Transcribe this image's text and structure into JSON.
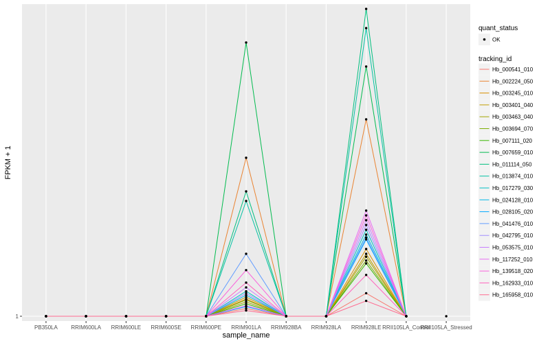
{
  "chart_data": {
    "type": "line",
    "xlabel": "sample_name",
    "ylabel": "FPKM + 1",
    "categories": [
      "PB350LA",
      "RRIM600LA",
      "RRIM600LE",
      "RRIM600SE",
      "RRIM600PE",
      "RRIM901LA",
      "RRIM928BA",
      "RRIM928LA",
      "RRIM928LE",
      "RRII105LA_Control",
      "RRII105LA_Stressed"
    ],
    "yticks": [
      {
        "value": 1,
        "label": "1"
      }
    ],
    "ylim": [
      0.5,
      33.5
    ],
    "grid": true,
    "background": "#ebebeb",
    "grid_color": "#ffffff",
    "legend_position": "right",
    "quant_status": {
      "title": "quant_status",
      "entries": [
        "OK"
      ]
    },
    "legend_title": "tracking_id",
    "series": [
      {
        "name": "Hb_000541_010",
        "color": "#F8766D",
        "values": [
          1,
          1,
          1,
          1,
          1,
          1.8,
          1,
          1,
          3.4,
          1,
          null
        ]
      },
      {
        "name": "Hb_002224_050",
        "color": "#EA8331",
        "values": [
          1,
          1,
          1,
          1,
          1,
          17.5,
          1,
          1,
          21.5,
          1,
          null
        ]
      },
      {
        "name": "Hb_003245_010",
        "color": "#D89000",
        "values": [
          1,
          1,
          1,
          1,
          1,
          2.8,
          1,
          1,
          8.0,
          1,
          null
        ]
      },
      {
        "name": "Hb_003401_040",
        "color": "#C09B00",
        "values": [
          1,
          1,
          1,
          1,
          1,
          3.0,
          1,
          1,
          7.5,
          1,
          null
        ]
      },
      {
        "name": "Hb_003463_040",
        "color": "#A3A500",
        "values": [
          1,
          1,
          1,
          1,
          1,
          2.5,
          1,
          1,
          7.2,
          1,
          null
        ]
      },
      {
        "name": "Hb_003694_070",
        "color": "#7CAE00",
        "values": [
          1,
          1,
          1,
          1,
          1,
          2.7,
          1,
          1,
          6.8,
          1,
          null
        ]
      },
      {
        "name": "Hb_007111_020",
        "color": "#39B600",
        "values": [
          1,
          1,
          1,
          1,
          1,
          2.3,
          1,
          1,
          6.5,
          1,
          null
        ]
      },
      {
        "name": "Hb_007659_010",
        "color": "#00BB4E",
        "values": [
          1,
          1,
          1,
          1,
          1,
          29.5,
          1,
          1,
          27.0,
          1,
          null
        ]
      },
      {
        "name": "Hb_011114_050",
        "color": "#00BF7D",
        "values": [
          1,
          1,
          1,
          1,
          1,
          14.0,
          1,
          1,
          33.0,
          1,
          null
        ]
      },
      {
        "name": "Hb_013874_010",
        "color": "#00C1A3",
        "values": [
          1,
          1,
          1,
          1,
          1,
          13.0,
          1,
          1,
          31.0,
          1,
          null
        ]
      },
      {
        "name": "Hb_017279_030",
        "color": "#00BFC4",
        "values": [
          1,
          1,
          1,
          1,
          1,
          3.6,
          1,
          1,
          10.0,
          1,
          null
        ]
      },
      {
        "name": "Hb_024128_010",
        "color": "#00B8E5",
        "values": [
          1,
          1,
          1,
          1,
          1,
          3.2,
          1,
          1,
          9.5,
          1,
          null
        ]
      },
      {
        "name": "Hb_028105_020",
        "color": "#00A9FF",
        "values": [
          1,
          1,
          1,
          1,
          1,
          2.0,
          1,
          1,
          9.0,
          1,
          null
        ]
      },
      {
        "name": "Hb_041476_010",
        "color": "#619CFF",
        "values": [
          1,
          1,
          1,
          1,
          1,
          7.5,
          1,
          1,
          9.2,
          1,
          null
        ]
      },
      {
        "name": "Hb_042795_010",
        "color": "#9F8CFF",
        "values": [
          1,
          1,
          1,
          1,
          1,
          3.4,
          1,
          1,
          10.5,
          1,
          null
        ]
      },
      {
        "name": "Hb_053575_010",
        "color": "#C77CFF",
        "values": [
          1,
          1,
          1,
          1,
          1,
          4.0,
          1,
          1,
          11.0,
          1,
          null
        ]
      },
      {
        "name": "Hb_117252_010",
        "color": "#E76BF3",
        "values": [
          1,
          1,
          1,
          1,
          1,
          2.1,
          1,
          1,
          12.0,
          1,
          null
        ]
      },
      {
        "name": "Hb_139518_020",
        "color": "#FA62DB",
        "values": [
          1,
          1,
          1,
          1,
          1,
          5.8,
          1,
          1,
          11.5,
          1,
          null
        ]
      },
      {
        "name": "Hb_162933_010",
        "color": "#FF62BC",
        "values": [
          1,
          1,
          1,
          1,
          1,
          4.5,
          1,
          1,
          5.3,
          1,
          null
        ]
      },
      {
        "name": "Hb_165958_010",
        "color": "#FF6C91",
        "values": [
          1,
          1,
          1,
          1,
          1,
          1.6,
          1,
          1,
          2.6,
          1,
          null
        ]
      }
    ],
    "extra_points": [
      {
        "x": "RRII105LA_Stressed",
        "y": 1
      }
    ]
  }
}
